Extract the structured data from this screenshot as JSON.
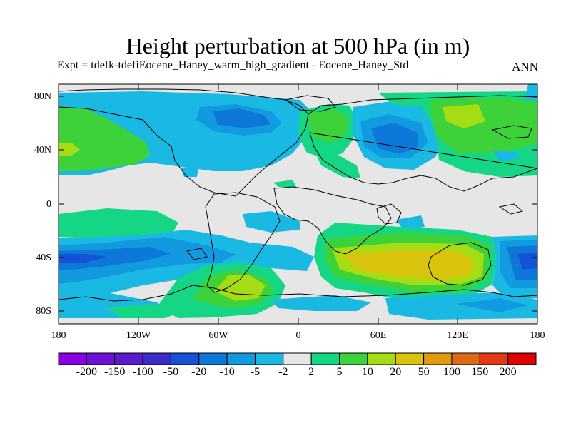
{
  "title": "Height perturbation at 500 hPa (in m)",
  "subtitle": "Expt = tdefk-tdefiEocene_Haney_warm_high_gradient - Eocene_Haney_Std",
  "season_label": "ANN",
  "colors": {
    "bins": [
      "#8a00e0",
      "#6f10d6",
      "#5a1ccd",
      "#3a2ac8",
      "#1452d8",
      "#0e78d8",
      "#129ae0",
      "#19b9e4",
      "#e6e6e6",
      "#14d684",
      "#3ed23a",
      "#a6dc14",
      "#d8c40c",
      "#e09a10",
      "#e06a14",
      "#e43a14",
      "#e00000"
    ],
    "land_outline": "#000000",
    "background": "#e6e6e6"
  },
  "map": {
    "projection": "cylindrical-equidistant",
    "lat_ticks": [
      "80N",
      "40N",
      "0",
      "40S",
      "80S"
    ],
    "lon_ticks": [
      "180",
      "120W",
      "60W",
      "0",
      "60E",
      "120E",
      "180"
    ]
  },
  "colorbar": {
    "levels": [
      "-200",
      "-150",
      "-100",
      "-50",
      "-20",
      "-10",
      "-5",
      "-2",
      "2",
      "5",
      "10",
      "20",
      "50",
      "100",
      "150",
      "200"
    ]
  }
}
